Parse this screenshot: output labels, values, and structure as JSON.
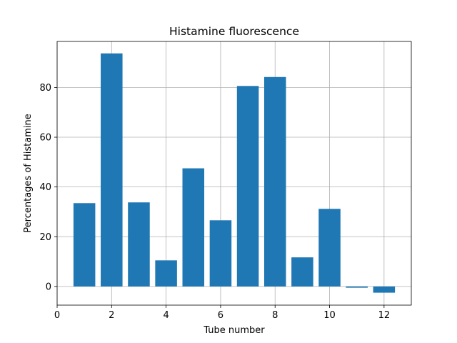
{
  "chart_data": {
    "type": "bar",
    "title": "Histamine fluorescence",
    "xlabel": "Tube number",
    "ylabel": "Percentages of Histamine",
    "x": [
      1,
      2,
      3,
      4,
      5,
      6,
      7,
      8,
      9,
      10,
      11,
      12
    ],
    "values": [
      33.5,
      93.7,
      33.8,
      10.5,
      47.5,
      26.6,
      80.6,
      84.2,
      11.7,
      31.2,
      -0.5,
      -2.5
    ],
    "xlim": [
      0,
      13
    ],
    "ylim": [
      -7.5,
      98.5
    ],
    "xticks": [
      0,
      2,
      4,
      6,
      8,
      10,
      12
    ],
    "yticks": [
      0,
      20,
      40,
      60,
      80
    ],
    "bar_width": 0.8,
    "bar_color": "#1f77b4",
    "grid": true,
    "legend": "none"
  }
}
